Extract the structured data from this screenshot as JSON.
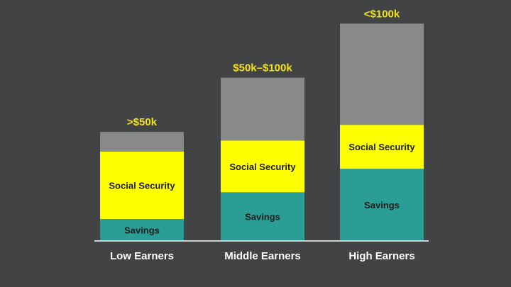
{
  "chart_data": {
    "type": "bar",
    "stacked": true,
    "categories": [
      "Low Earners",
      "Middle Earners",
      "High Earners"
    ],
    "income_labels": [
      ">$50k",
      "$50k–$100k",
      "<$100k"
    ],
    "series": [
      {
        "name": "Savings",
        "color": "#2a9d94",
        "values": [
          28,
          62,
          92
        ]
      },
      {
        "name": "Social Security",
        "color": "#ffff00",
        "values": [
          86,
          66,
          56
        ]
      },
      {
        "name": "",
        "color": "#888a89",
        "values": [
          25,
          80,
          129
        ]
      }
    ],
    "ylim": [
      0,
      280
    ],
    "axis_color": "#cfcfcf",
    "grid": false
  }
}
